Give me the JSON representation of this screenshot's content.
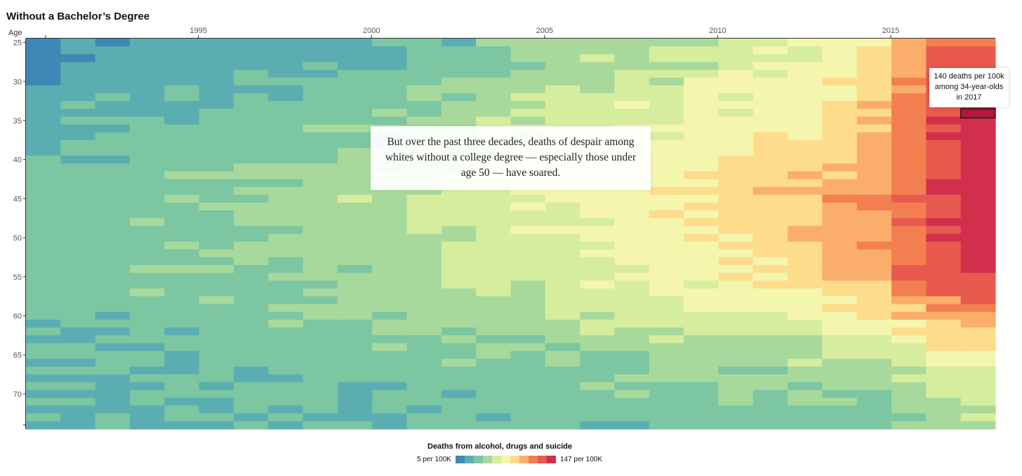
{
  "chart_data": {
    "type": "heatmap",
    "title": "Without a Bachelor’s Degree",
    "ylabel": "Age",
    "x_range": [
      1990,
      2017
    ],
    "y_range": [
      25,
      74
    ],
    "x_ticks": [
      "1995",
      "2000",
      "2005",
      "2010",
      "2015"
    ],
    "x_tick_values": [
      1995,
      2000,
      2005,
      2010,
      2015
    ],
    "y_ticks": [
      "25",
      "30",
      "35",
      "40",
      "45",
      "50",
      "55",
      "60",
      "65",
      "70"
    ],
    "y_tick_values": [
      25,
      30,
      35,
      40,
      45,
      50,
      55,
      60,
      65,
      70
    ],
    "value_unit": "deaths per 100K",
    "color_min": 5,
    "color_max": 147,
    "highlight": {
      "year": 2017,
      "age": 34,
      "value": 140
    },
    "age_profile_by_year": {
      "1990": [
        [
          25,
          18
        ],
        [
          35,
          26
        ],
        [
          45,
          34
        ],
        [
          55,
          36
        ],
        [
          65,
          32
        ],
        [
          74,
          30
        ]
      ],
      "1995": [
        [
          25,
          22
        ],
        [
          35,
          34
        ],
        [
          45,
          44
        ],
        [
          55,
          42
        ],
        [
          65,
          34
        ],
        [
          74,
          30
        ]
      ],
      "2000": [
        [
          25,
          26
        ],
        [
          35,
          44
        ],
        [
          45,
          56
        ],
        [
          55,
          50
        ],
        [
          65,
          38
        ],
        [
          74,
          30
        ]
      ],
      "2003": [
        [
          25,
          38
        ],
        [
          35,
          54
        ],
        [
          45,
          66
        ],
        [
          55,
          58
        ],
        [
          65,
          42
        ],
        [
          74,
          32
        ]
      ],
      "2006": [
        [
          25,
          48
        ],
        [
          35,
          64
        ],
        [
          45,
          76
        ],
        [
          55,
          68
        ],
        [
          65,
          46
        ],
        [
          74,
          34
        ]
      ],
      "2009": [
        [
          25,
          58
        ],
        [
          35,
          72
        ],
        [
          45,
          86
        ],
        [
          55,
          76
        ],
        [
          65,
          48
        ],
        [
          74,
          34
        ]
      ],
      "2012": [
        [
          25,
          68
        ],
        [
          35,
          80
        ],
        [
          45,
          98
        ],
        [
          55,
          90
        ],
        [
          65,
          54
        ],
        [
          74,
          36
        ]
      ],
      "2014": [
        [
          25,
          84
        ],
        [
          35,
          96
        ],
        [
          45,
          108
        ],
        [
          55,
          104
        ],
        [
          65,
          60
        ],
        [
          74,
          38
        ]
      ],
      "2015": [
        [
          25,
          100
        ],
        [
          35,
          112
        ],
        [
          45,
          120
        ],
        [
          55,
          118
        ],
        [
          65,
          66
        ],
        [
          74,
          40
        ]
      ],
      "2016": [
        [
          25,
          118
        ],
        [
          35,
          132
        ],
        [
          45,
          132
        ],
        [
          55,
          130
        ],
        [
          65,
          72
        ],
        [
          74,
          46
        ]
      ],
      "2017": [
        [
          25,
          124
        ],
        [
          34,
          140
        ],
        [
          45,
          140
        ],
        [
          55,
          136
        ],
        [
          65,
          78
        ],
        [
          74,
          52
        ]
      ]
    }
  },
  "annotation": {
    "text": "But over the past three decades, deaths of despair among whites without a college degree — especially those under age 50 — have soared."
  },
  "tooltip": {
    "text": "140 deaths per 100k among 34-year-olds in 2017"
  },
  "legend": {
    "title": "Deaths from alcohol, drugs and suicide",
    "min_label": "5 per 100K",
    "max_label": "147 per 100K",
    "colors": [
      "#3f87b4",
      "#5aaeb2",
      "#7cc6a2",
      "#a8d99c",
      "#d7ed9e",
      "#f4f6ad",
      "#fddc8c",
      "#fbae6b",
      "#f37f51",
      "#e85a4f",
      "#d12f4c"
    ]
  }
}
